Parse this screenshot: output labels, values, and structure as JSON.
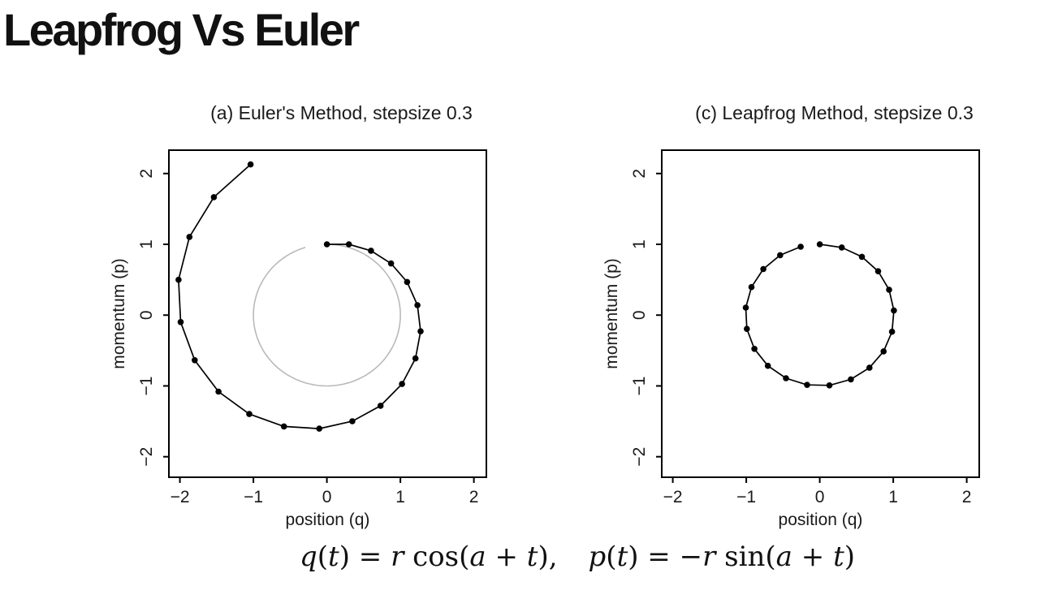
{
  "page": {
    "title": "Leapfrog Vs Euler",
    "background_color": "#ffffff",
    "text_color": "#1a1a1a"
  },
  "equation": {
    "text": "q(t) = r cos(a + t),   p(t) = −r sin(a + t)",
    "segments": [
      {
        "text": "q",
        "style": "var"
      },
      {
        "text": "(",
        "style": "rm"
      },
      {
        "text": "t",
        "style": "var"
      },
      {
        "text": ")",
        "style": "rm"
      },
      {
        "text": " = ",
        "style": "rm"
      },
      {
        "text": "r",
        "style": "var"
      },
      {
        "text": " cos(",
        "style": "rm"
      },
      {
        "text": "a",
        "style": "var"
      },
      {
        "text": " + ",
        "style": "rm"
      },
      {
        "text": "t",
        "style": "var"
      },
      {
        "text": "),",
        "style": "rm"
      },
      {
        "text": "",
        "style": "gap"
      },
      {
        "text": "p",
        "style": "var"
      },
      {
        "text": "(",
        "style": "rm"
      },
      {
        "text": "t",
        "style": "var"
      },
      {
        "text": ")",
        "style": "rm"
      },
      {
        "text": " = ",
        "style": "rm"
      },
      {
        "text": "−",
        "style": "rm"
      },
      {
        "text": "r",
        "style": "var"
      },
      {
        "text": " sin(",
        "style": "rm"
      },
      {
        "text": "a",
        "style": "var"
      },
      {
        "text": " + ",
        "style": "rm"
      },
      {
        "text": "t",
        "style": "var"
      },
      {
        "text": ")",
        "style": "rm"
      }
    ]
  },
  "chart_data": [
    {
      "id": "euler",
      "type": "line",
      "title": "(a) Euler's Method, stepsize 0.3",
      "method": "Euler's Method",
      "stepsize": 0.3,
      "xlabel": "position (q)",
      "ylabel": "momentum (p)",
      "xticks": [
        -2,
        -1,
        0,
        1,
        2
      ],
      "yticks": [
        -2,
        -1,
        0,
        1,
        2
      ],
      "xlim": [
        -2.15,
        2.17
      ],
      "ylim": [
        -2.29,
        2.33
      ],
      "grid": false,
      "line_color": "#000000",
      "marker_color": "#000000",
      "true_trajectory": {
        "shape": "circle_arc",
        "center": [
          0,
          0
        ],
        "radius": 1,
        "start_deg": 90,
        "sweep_deg": -343,
        "color": "#b9b9b9"
      },
      "points": [
        [
          0,
          1
        ],
        [
          0.3,
          1
        ],
        [
          0.6,
          0.91
        ],
        [
          0.873,
          0.73
        ],
        [
          1.092,
          0.468
        ],
        [
          1.232,
          0.14
        ],
        [
          1.275,
          -0.229
        ],
        [
          1.206,
          -0.612
        ],
        [
          1.022,
          -0.973
        ],
        [
          0.73,
          -1.28
        ],
        [
          0.346,
          -1.499
        ],
        [
          -0.104,
          -1.603
        ],
        [
          -0.584,
          -1.572
        ],
        [
          -1.056,
          -1.397
        ],
        [
          -1.475,
          -1.08
        ],
        [
          -1.799,
          -0.637
        ],
        [
          -1.99,
          -0.098
        ],
        [
          -2.019,
          0.499
        ],
        [
          -1.87,
          1.105
        ],
        [
          -1.538,
          1.666
        ],
        [
          -1.038,
          2.128
        ]
      ]
    },
    {
      "id": "leapfrog",
      "type": "line",
      "title": "(c) Leapfrog Method, stepsize 0.3",
      "method": "Leapfrog Method",
      "stepsize": 0.3,
      "xlabel": "position (q)",
      "ylabel": "momentum (p)",
      "xticks": [
        -2,
        -1,
        0,
        1,
        2
      ],
      "yticks": [
        -2,
        -1,
        0,
        1,
        2
      ],
      "xlim": [
        -2.15,
        2.17
      ],
      "ylim": [
        -2.29,
        2.33
      ],
      "grid": false,
      "line_color": "#000000",
      "marker_color": "#000000",
      "points": [
        [
          0,
          1
        ],
        [
          0.3,
          0.955
        ],
        [
          0.573,
          0.824
        ],
        [
          0.794,
          0.619
        ],
        [
          0.944,
          0.358
        ],
        [
          1.009,
          0.065
        ],
        [
          0.983,
          -0.234
        ],
        [
          0.869,
          -0.512
        ],
        [
          0.676,
          -0.744
        ],
        [
          0.423,
          -0.908
        ],
        [
          0.131,
          -0.992
        ],
        [
          -0.172,
          -0.985
        ],
        [
          -0.46,
          -0.891
        ],
        [
          -0.706,
          -0.716
        ],
        [
          -0.889,
          -0.476
        ],
        [
          -0.992,
          -0.194
        ],
        [
          -1.006,
          0.106
        ],
        [
          -0.929,
          0.396
        ],
        [
          -0.768,
          0.65
        ],
        [
          -0.539,
          0.846
        ],
        [
          -0.26,
          0.966
        ]
      ]
    }
  ]
}
